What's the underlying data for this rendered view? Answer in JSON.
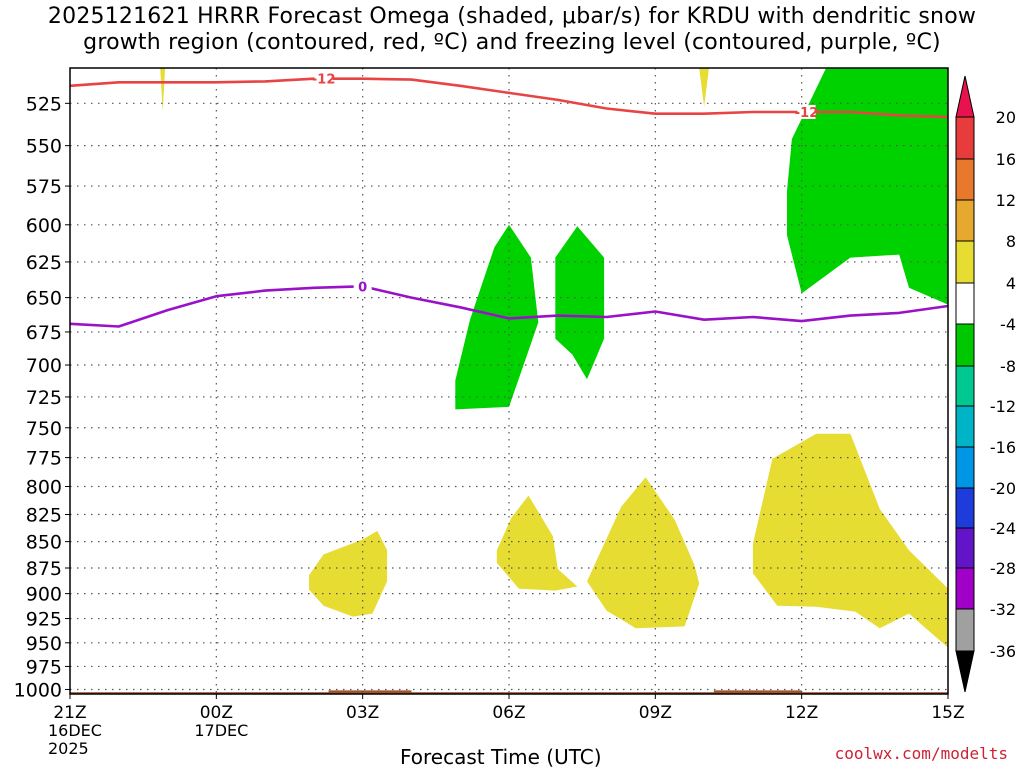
{
  "title": {
    "line1": "2025121621 HRRR Forecast Omega (shaded, μbar/s) for KRDU with dendritic snow",
    "line2": "growth region (contoured, red, ºC) and freezing level (contoured, purple, ºC)"
  },
  "credit": "coolwx.com/modelts",
  "chart_data": {
    "type": "time-height cross section",
    "xlabel": "Forecast Time (UTC)",
    "x_ticks": [
      {
        "hour": 0,
        "label": "21Z",
        "sub": [
          "16DEC",
          "2025"
        ]
      },
      {
        "hour": 3,
        "label": "00Z",
        "sub": [
          "17DEC"
        ]
      },
      {
        "hour": 6,
        "label": "03Z",
        "sub": []
      },
      {
        "hour": 9,
        "label": "06Z",
        "sub": []
      },
      {
        "hour": 12,
        "label": "09Z",
        "sub": []
      },
      {
        "hour": 15,
        "label": "12Z",
        "sub": []
      },
      {
        "hour": 18,
        "label": "15Z",
        "sub": []
      }
    ],
    "xlim_hours": [
      0,
      18
    ],
    "ylabel": "",
    "y_ticks": [
      525,
      550,
      575,
      600,
      625,
      650,
      675,
      700,
      725,
      750,
      775,
      800,
      825,
      850,
      875,
      900,
      925,
      950,
      975,
      1000
    ],
    "ylim_hpa": [
      505,
      1005
    ],
    "y_scale": "log-pressure",
    "grid": true,
    "colorbar": {
      "labels": [
        "20",
        "16",
        "12",
        "8",
        "4",
        "-4",
        "-8",
        "-12",
        "-16",
        "-20",
        "-24",
        "-28",
        "-32",
        "-36"
      ],
      "colors": [
        "#e8124f",
        "#e83c3c",
        "#e8782c",
        "#e6a82e",
        "#e6dc32",
        "#ffffff",
        "#00c800",
        "#00c890",
        "#00b4c8",
        "#0096e6",
        "#1e3cdc",
        "#6414c8",
        "#a000c8",
        "#a0a0a0",
        "#000000"
      ]
    },
    "contours": [
      {
        "name": "-12",
        "color": "#e84444",
        "points": [
          [
            0,
            515
          ],
          [
            1,
            513
          ],
          [
            2,
            513
          ],
          [
            3,
            513
          ],
          [
            4,
            512.5
          ],
          [
            5,
            511
          ],
          [
            6,
            511
          ],
          [
            7,
            511.5
          ],
          [
            8,
            515
          ],
          [
            9,
            519
          ],
          [
            10,
            523
          ],
          [
            11,
            528
          ],
          [
            12,
            531
          ],
          [
            13,
            531
          ],
          [
            14,
            530
          ],
          [
            15,
            530
          ],
          [
            16,
            530
          ],
          [
            17,
            532
          ],
          [
            18,
            533
          ]
        ],
        "labels": [
          {
            "x": 5.2,
            "y": 511,
            "text": "-12"
          },
          {
            "x": 15.1,
            "y": 530,
            "text": "-12"
          }
        ]
      },
      {
        "name": "0",
        "color": "#9a12c8",
        "points": [
          [
            0,
            669
          ],
          [
            1,
            671
          ],
          [
            2,
            659
          ],
          [
            3,
            649
          ],
          [
            4,
            645
          ],
          [
            5,
            643
          ],
          [
            6,
            642
          ],
          [
            7,
            650
          ],
          [
            8,
            657
          ],
          [
            9,
            665
          ],
          [
            10,
            663
          ],
          [
            11,
            664
          ],
          [
            12,
            660
          ],
          [
            13,
            666
          ],
          [
            14,
            664
          ],
          [
            15,
            667
          ],
          [
            16,
            663
          ],
          [
            17,
            661
          ],
          [
            18,
            656
          ]
        ],
        "labels": [
          {
            "x": 6,
            "y": 642,
            "text": "0"
          }
        ]
      }
    ],
    "shaded_regions": [
      {
        "value": "-4 to -8",
        "color": "#00d200",
        "points": [
          [
            7.9,
            735
          ],
          [
            7.9,
            712
          ],
          [
            8.2,
            666
          ],
          [
            8.7,
            615
          ],
          [
            9.0,
            600
          ],
          [
            9.45,
            622
          ],
          [
            9.6,
            668
          ],
          [
            9.0,
            733
          ]
        ]
      },
      {
        "value": "-4 to -8",
        "color": "#00d200",
        "points": [
          [
            9.95,
            622
          ],
          [
            10.4,
            601
          ],
          [
            10.95,
            622
          ],
          [
            10.95,
            680
          ],
          [
            10.6,
            711
          ],
          [
            10.3,
            692
          ],
          [
            9.95,
            680
          ]
        ]
      },
      {
        "value": "-4 to -8",
        "color": "#00d200",
        "points": [
          [
            15.9,
            505
          ],
          [
            18,
            505
          ],
          [
            18,
            655
          ],
          [
            17.2,
            643
          ],
          [
            17.0,
            620
          ],
          [
            16.0,
            622
          ],
          [
            15.0,
            647
          ],
          [
            14.7,
            607
          ],
          [
            14.7,
            578
          ],
          [
            14.8,
            546
          ],
          [
            15.5,
            505
          ]
        ]
      },
      {
        "value": "4 to 8",
        "color": "#e6dc32",
        "points": [
          [
            4.9,
            882
          ],
          [
            5.2,
            862
          ],
          [
            6.0,
            848
          ],
          [
            6.3,
            840
          ],
          [
            6.5,
            858
          ],
          [
            6.5,
            888
          ],
          [
            6.2,
            920
          ],
          [
            5.8,
            923
          ],
          [
            5.2,
            912
          ],
          [
            4.9,
            896
          ]
        ]
      },
      {
        "value": "4 to 8",
        "color": "#e6dc32",
        "points": [
          [
            8.75,
            858
          ],
          [
            9.05,
            828
          ],
          [
            9.4,
            808
          ],
          [
            9.9,
            845
          ],
          [
            10.0,
            876
          ],
          [
            10.4,
            893
          ],
          [
            9.95,
            897
          ],
          [
            9.2,
            895
          ],
          [
            8.75,
            870
          ]
        ]
      },
      {
        "value": "4 to 8",
        "color": "#e6dc32",
        "points": [
          [
            10.6,
            888
          ],
          [
            11.3,
            818
          ],
          [
            11.8,
            792
          ],
          [
            12.4,
            830
          ],
          [
            12.8,
            872
          ],
          [
            12.9,
            890
          ],
          [
            12.6,
            933
          ],
          [
            11.6,
            935
          ],
          [
            11.0,
            917
          ]
        ]
      },
      {
        "value": "4 to 8",
        "color": "#e6dc32",
        "points": [
          [
            14.0,
            852
          ],
          [
            14.4,
            776
          ],
          [
            15.3,
            755
          ],
          [
            16.0,
            755
          ],
          [
            16.6,
            820
          ],
          [
            17.2,
            858
          ],
          [
            18.0,
            895
          ],
          [
            18.0,
            955
          ],
          [
            17.2,
            920
          ],
          [
            16.6,
            935
          ],
          [
            16.1,
            918
          ],
          [
            15.3,
            913
          ],
          [
            14.5,
            912
          ],
          [
            14.0,
            880
          ]
        ]
      },
      {
        "value": "4 to 8",
        "color": "#e6dc32",
        "points": [
          [
            1.85,
            505
          ],
          [
            1.95,
            505
          ],
          [
            1.9,
            530
          ]
        ]
      },
      {
        "value": "4 to 8",
        "color": "#e6dc32",
        "points": [
          [
            12.9,
            505
          ],
          [
            13.1,
            505
          ],
          [
            13.0,
            527
          ]
        ]
      }
    ],
    "terrain": [
      {
        "x_start": 0,
        "x_end": 18,
        "top_hpa": 1003
      },
      {
        "x_start": 5.3,
        "x_end": 7.0,
        "top_hpa": 1001
      },
      {
        "x_start": 13.2,
        "x_end": 15.0,
        "top_hpa": 1001
      }
    ]
  }
}
